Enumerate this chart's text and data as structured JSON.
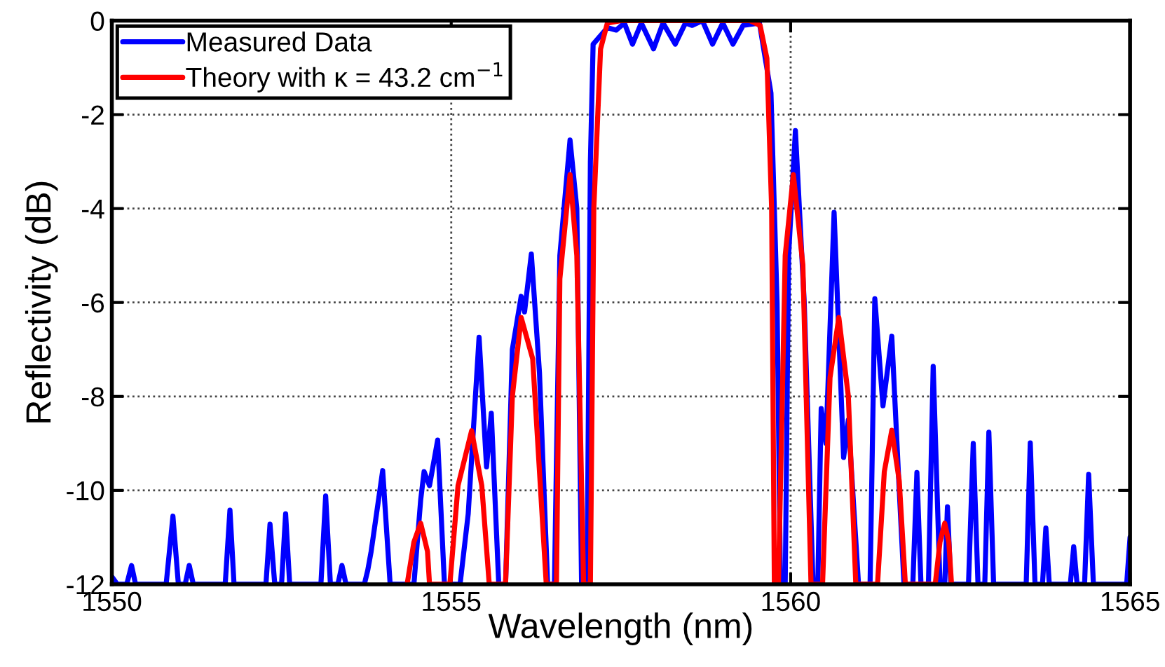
{
  "chart_data": {
    "type": "line",
    "xlabel": "Wavelength (nm)",
    "ylabel": "Reflectivity (dB)",
    "xlim": [
      1550,
      1565
    ],
    "xticks": [
      1550,
      1555,
      1560,
      1565
    ],
    "ylim": [
      -12,
      0
    ],
    "yticks": [
      -12,
      -10,
      -8,
      -6,
      -4,
      -2,
      0
    ],
    "grid": true,
    "legend": "top left",
    "line_style": "solid",
    "marker": "none",
    "series": [
      {
        "name": "Measured Data",
        "color": "#0000ff",
        "x": [
          1550.0,
          1550.08,
          1550.22,
          1550.29,
          1550.35,
          1550.8,
          1550.9,
          1550.98,
          1551.08,
          1551.14,
          1551.2,
          1551.67,
          1551.74,
          1551.8,
          1552.27,
          1552.33,
          1552.4,
          1552.5,
          1552.56,
          1552.62,
          1553.08,
          1553.15,
          1553.22,
          1553.33,
          1553.39,
          1553.45,
          1553.72,
          1553.77,
          1553.82,
          1553.99,
          1554.1,
          1554.45,
          1554.55,
          1554.6,
          1554.68,
          1554.8,
          1554.9,
          1555.13,
          1555.25,
          1555.41,
          1555.52,
          1555.59,
          1555.7,
          1555.8,
          1555.9,
          1556.03,
          1556.08,
          1556.18,
          1556.3,
          1556.42,
          1556.52,
          1556.6,
          1556.75,
          1556.85,
          1556.92,
          1557.0,
          1557.05,
          1557.09,
          1557.3,
          1557.43,
          1557.55,
          1557.67,
          1557.8,
          1557.98,
          1558.12,
          1558.3,
          1558.45,
          1558.55,
          1558.7,
          1558.85,
          1559.0,
          1559.15,
          1559.3,
          1559.54,
          1559.71,
          1559.8,
          1559.85,
          1559.92,
          1559.97,
          1560.07,
          1560.2,
          1560.33,
          1560.4,
          1560.45,
          1560.52,
          1560.64,
          1560.78,
          1560.85,
          1561.0,
          1561.17,
          1561.24,
          1561.36,
          1561.49,
          1561.6,
          1561.67,
          1561.8,
          1561.86,
          1561.92,
          1562.03,
          1562.1,
          1562.2,
          1562.27,
          1562.31,
          1562.36,
          1562.62,
          1562.69,
          1562.76,
          1562.86,
          1562.92,
          1562.99,
          1563.47,
          1563.53,
          1563.6,
          1563.71,
          1563.76,
          1563.81,
          1564.12,
          1564.17,
          1564.22,
          1564.33,
          1564.39,
          1564.46,
          1564.95,
          1565.0
        ],
        "values": [
          -11.84,
          -12,
          -12,
          -11.6,
          -12,
          -12,
          -10.55,
          -12,
          -12,
          -11.6,
          -12,
          -12,
          -10.42,
          -12,
          -12,
          -10.72,
          -12,
          -12,
          -10.5,
          -12,
          -12,
          -10.12,
          -12,
          -12,
          -11.6,
          -12,
          -12,
          -11.7,
          -11.3,
          -9.58,
          -12,
          -12,
          -10.2,
          -9.6,
          -9.9,
          -8.93,
          -12,
          -12,
          -10.5,
          -6.74,
          -9.5,
          -8.36,
          -12,
          -12,
          -7.0,
          -5.87,
          -6.2,
          -4.97,
          -7.5,
          -12,
          -12,
          -5.0,
          -2.54,
          -4.0,
          -12,
          -12,
          -3.0,
          -0.5,
          -0.15,
          -0.2,
          -0.05,
          -0.5,
          -0.05,
          -0.6,
          -0.05,
          -0.5,
          -0.05,
          -0.1,
          0,
          -0.5,
          -0.05,
          -0.5,
          -0.1,
          -0.05,
          -1.54,
          -6.0,
          -12,
          -12,
          -5.0,
          -2.34,
          -6.0,
          -12,
          -12,
          -8.26,
          -9.0,
          -4.08,
          -9.3,
          -8.5,
          -12,
          -12,
          -5.92,
          -8.2,
          -6.72,
          -10.0,
          -12,
          -12,
          -9.62,
          -12,
          -12,
          -7.36,
          -12,
          -12,
          -10.35,
          -12,
          -12,
          -9.0,
          -12,
          -12,
          -8.76,
          -12,
          -12,
          -8.99,
          -12,
          -12,
          -10.8,
          -12,
          -12,
          -11.2,
          -12,
          -12,
          -9.66,
          -12,
          -12,
          -11.0
        ]
      },
      {
        "name": "Theory with κ = 43.2 cm$^{−1}$",
        "color": "#ff0000",
        "x": [
          1554.35,
          1554.45,
          1554.55,
          1554.65,
          1554.68,
          1554.98,
          1555.1,
          1555.3,
          1555.45,
          1555.56,
          1555.8,
          1555.9,
          1556.03,
          1556.2,
          1556.4,
          1556.55,
          1556.6,
          1556.75,
          1556.85,
          1556.95,
          1557.05,
          1557.1,
          1557.2,
          1557.3,
          1557.5,
          1559.4,
          1559.55,
          1559.65,
          1559.72,
          1559.76,
          1559.82,
          1559.92,
          1560.04,
          1560.18,
          1560.3,
          1560.47,
          1560.58,
          1560.71,
          1560.85,
          1560.96,
          1561.28,
          1561.38,
          1561.49,
          1561.6,
          1561.69,
          1562.13,
          1562.2,
          1562.27,
          1562.33,
          1562.37
        ],
        "values": [
          -12,
          -11.1,
          -10.7,
          -11.3,
          -12,
          -12,
          -9.9,
          -8.73,
          -9.9,
          -12,
          -12,
          -8.0,
          -6.32,
          -7.2,
          -12,
          -12,
          -5.5,
          -3.28,
          -5.0,
          -12,
          -12,
          -4.0,
          -0.6,
          -0.05,
          0,
          0,
          -0.1,
          -0.8,
          -4.0,
          -12,
          -12,
          -5.0,
          -3.28,
          -5.2,
          -12,
          -12,
          -7.6,
          -6.32,
          -8.0,
          -12,
          -12,
          -9.6,
          -8.72,
          -9.8,
          -12,
          -12,
          -11.1,
          -10.7,
          -11.1,
          -12
        ]
      }
    ]
  }
}
